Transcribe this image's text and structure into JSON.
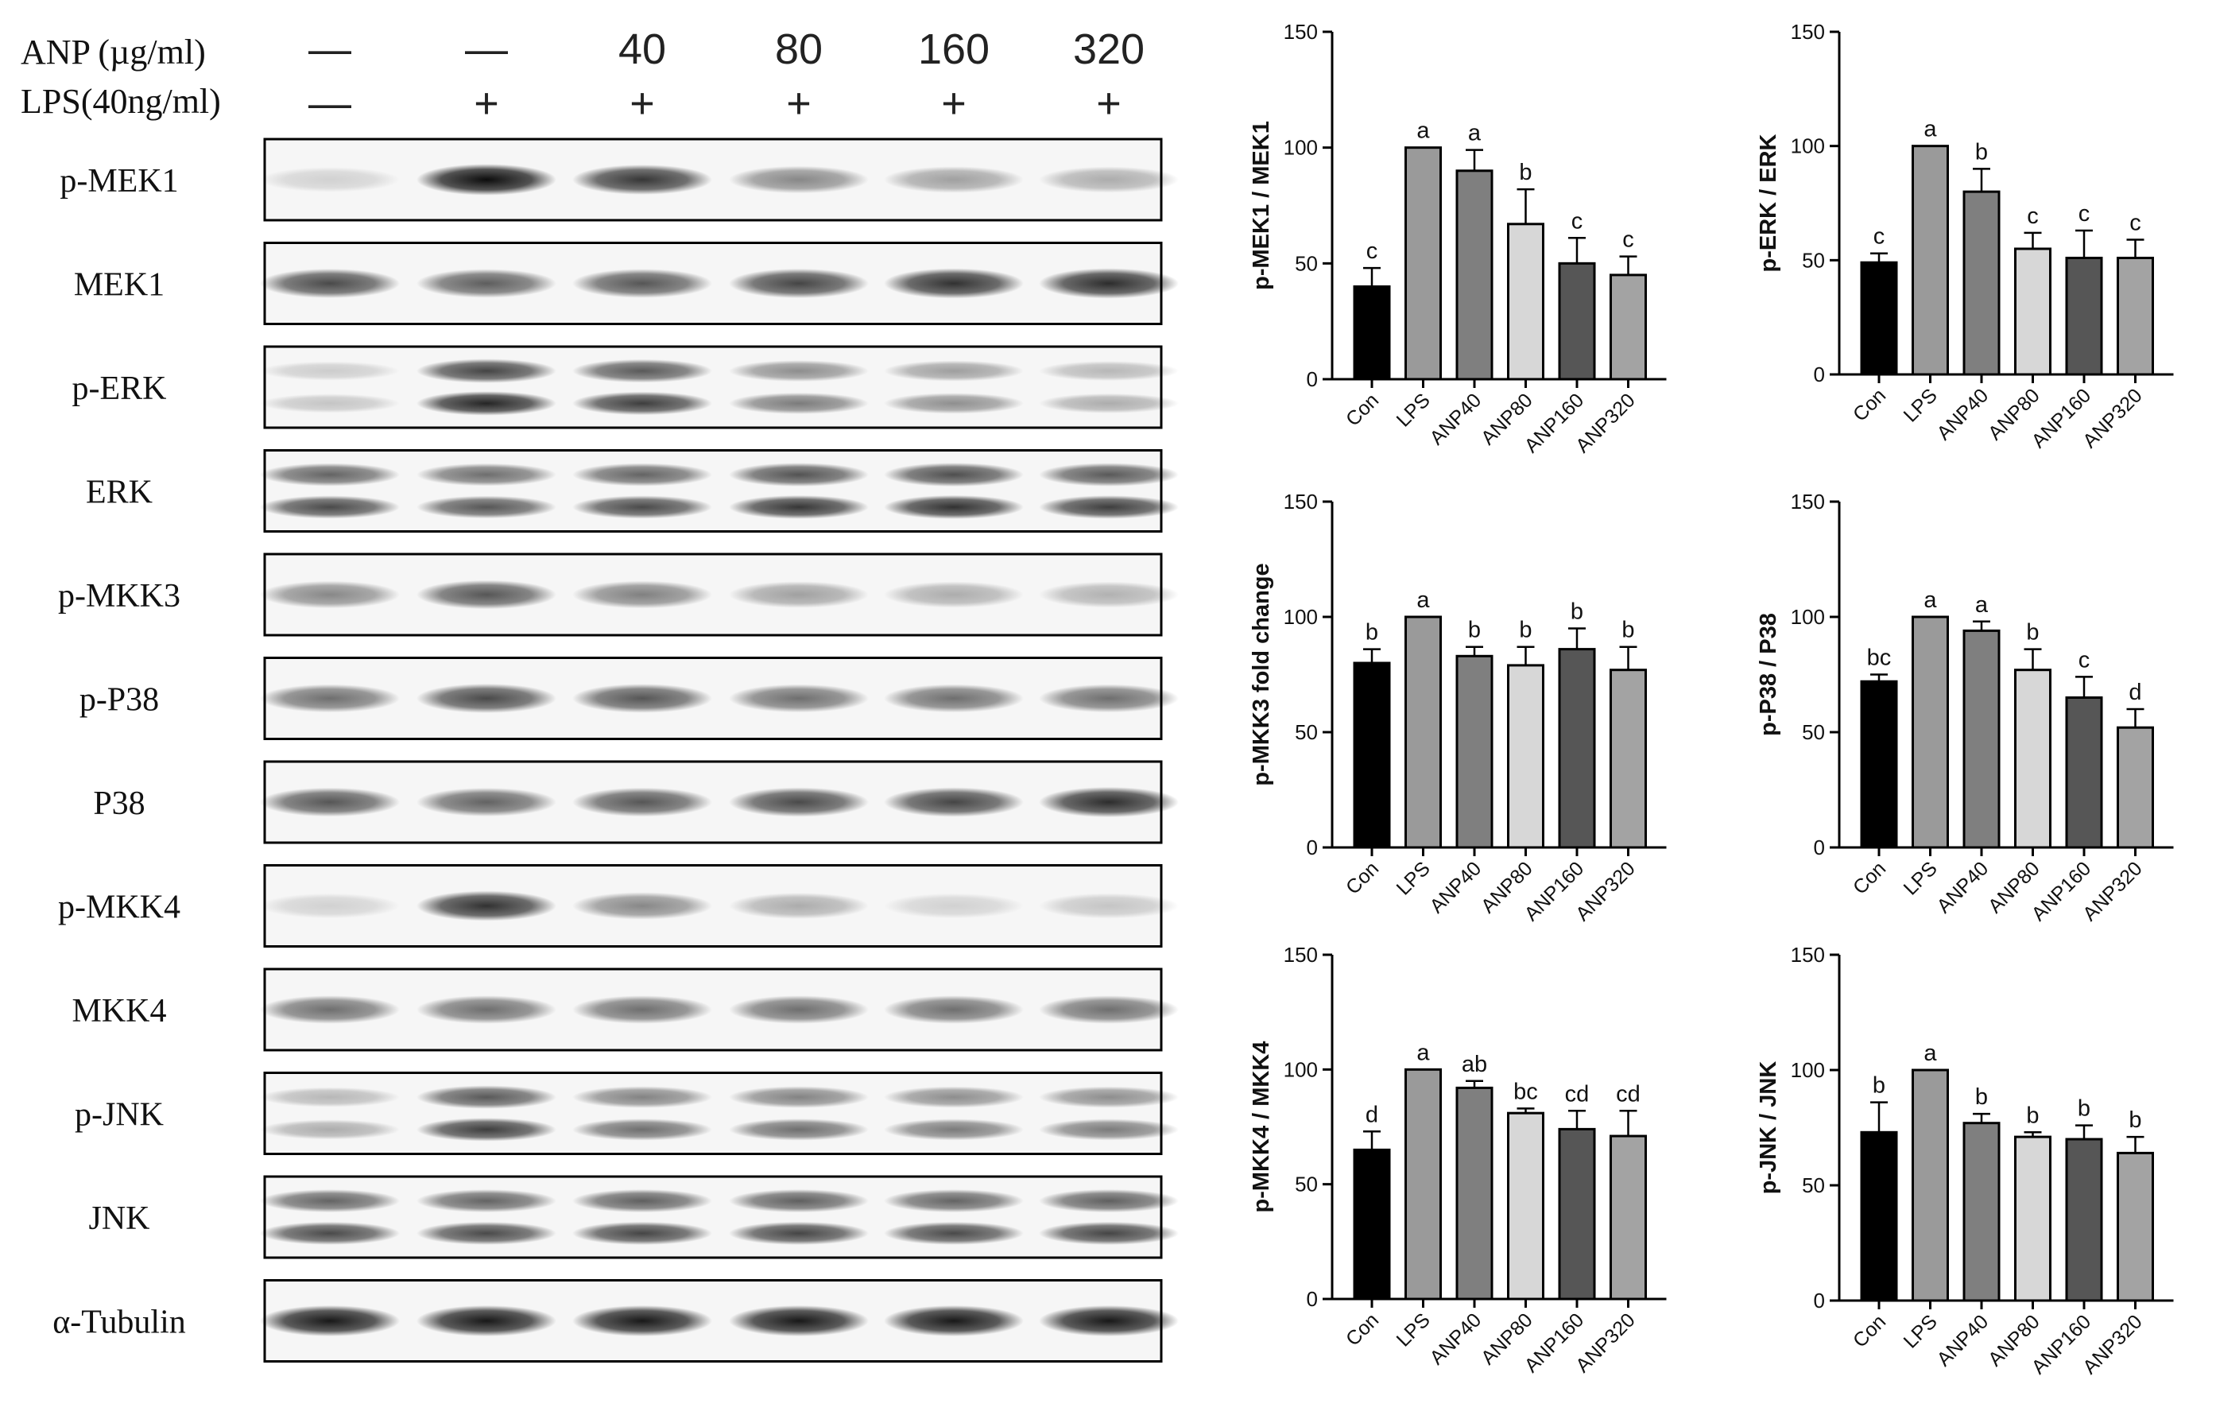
{
  "treatments": {
    "anp_label": "ANP (µg/ml)",
    "lps_label": "LPS(40ng/ml)",
    "anp_values": [
      "—",
      "—",
      "40",
      "80",
      "160",
      "320"
    ],
    "lps_values": [
      "—",
      "+",
      "+",
      "+",
      "+",
      "+"
    ]
  },
  "blots": [
    {
      "label": "p-MEK1",
      "bands": 1,
      "intensity": [
        0.15,
        0.95,
        0.78,
        0.45,
        0.35,
        0.3
      ]
    },
    {
      "label": "MEK1",
      "bands": 1,
      "intensity": [
        0.7,
        0.62,
        0.65,
        0.72,
        0.8,
        0.82
      ]
    },
    {
      "label": "p-ERK",
      "bands": 2,
      "intensity": [
        0.2,
        0.85,
        0.75,
        0.5,
        0.42,
        0.3
      ]
    },
    {
      "label": "ERK",
      "bands": 2,
      "intensity": [
        0.7,
        0.65,
        0.7,
        0.78,
        0.8,
        0.75
      ]
    },
    {
      "label": "p-MKK3",
      "bands": 1,
      "intensity": [
        0.45,
        0.65,
        0.48,
        0.35,
        0.3,
        0.28
      ]
    },
    {
      "label": "p-P38",
      "bands": 1,
      "intensity": [
        0.55,
        0.7,
        0.65,
        0.55,
        0.55,
        0.55
      ]
    },
    {
      "label": "P38",
      "bands": 1,
      "intensity": [
        0.65,
        0.6,
        0.65,
        0.7,
        0.72,
        0.82
      ]
    },
    {
      "label": "p-MKK4",
      "bands": 1,
      "intensity": [
        0.15,
        0.8,
        0.45,
        0.3,
        0.15,
        0.2
      ]
    },
    {
      "label": "MKK4",
      "bands": 1,
      "intensity": [
        0.55,
        0.55,
        0.55,
        0.55,
        0.55,
        0.55
      ]
    },
    {
      "label": "p-JNK",
      "bands": 2,
      "intensity": [
        0.3,
        0.75,
        0.55,
        0.55,
        0.5,
        0.5
      ]
    },
    {
      "label": "JNK",
      "bands": 2,
      "intensity": [
        0.7,
        0.7,
        0.72,
        0.72,
        0.7,
        0.72
      ]
    },
    {
      "label": "α-Tubulin",
      "bands": 1,
      "intensity": [
        0.9,
        0.9,
        0.9,
        0.9,
        0.9,
        0.9
      ]
    }
  ],
  "chart_data": [
    {
      "type": "bar",
      "categories": [
        "Con",
        "LPS",
        "ANP40",
        "ANP80",
        "ANP160",
        "ANP320"
      ],
      "values": [
        40,
        100,
        90,
        67,
        50,
        45
      ],
      "errors": [
        8,
        0,
        9,
        15,
        11,
        8
      ],
      "letters": [
        "c",
        "a",
        "a",
        "b",
        "c",
        "c"
      ],
      "ylabel": "p-MEK1 / MEK1",
      "ylim": [
        0,
        150
      ],
      "yticks": [
        0,
        50,
        100,
        150
      ],
      "bar_colors": [
        "#000000",
        "#9a9a9a",
        "#7f7f7f",
        "#d7d7d7",
        "#565656",
        "#a3a3a3"
      ]
    },
    {
      "type": "bar",
      "categories": [
        "Con",
        "LPS",
        "ANP40",
        "ANP80",
        "ANP160",
        "ANP320"
      ],
      "values": [
        49,
        100,
        80,
        55,
        51,
        51
      ],
      "errors": [
        4,
        0,
        10,
        7,
        12,
        8
      ],
      "letters": [
        "c",
        "a",
        "b",
        "c",
        "c",
        "c"
      ],
      "ylabel": "p-ERK / ERK",
      "ylim": [
        0,
        150
      ],
      "yticks": [
        0,
        50,
        100,
        150
      ],
      "bar_colors": [
        "#000000",
        "#9a9a9a",
        "#7f7f7f",
        "#d7d7d7",
        "#565656",
        "#a3a3a3"
      ]
    },
    {
      "type": "bar",
      "categories": [
        "Con",
        "LPS",
        "ANP40",
        "ANP80",
        "ANP160",
        "ANP320"
      ],
      "values": [
        80,
        100,
        83,
        79,
        86,
        77
      ],
      "errors": [
        6,
        0,
        4,
        8,
        9,
        10
      ],
      "letters": [
        "b",
        "a",
        "b",
        "b",
        "b",
        "b"
      ],
      "ylabel": "p-MKK3 fold change",
      "ylim": [
        0,
        150
      ],
      "yticks": [
        0,
        50,
        100,
        150
      ],
      "bar_colors": [
        "#000000",
        "#9a9a9a",
        "#7f7f7f",
        "#d7d7d7",
        "#565656",
        "#a3a3a3"
      ]
    },
    {
      "type": "bar",
      "categories": [
        "Con",
        "LPS",
        "ANP40",
        "ANP80",
        "ANP160",
        "ANP320"
      ],
      "values": [
        72,
        100,
        94,
        77,
        65,
        52
      ],
      "errors": [
        3,
        0,
        4,
        9,
        9,
        8
      ],
      "letters": [
        "bc",
        "a",
        "a",
        "b",
        "c",
        "d"
      ],
      "ylabel": "p-P38 / P38",
      "ylim": [
        0,
        150
      ],
      "yticks": [
        0,
        50,
        100,
        150
      ],
      "bar_colors": [
        "#000000",
        "#9a9a9a",
        "#7f7f7f",
        "#d7d7d7",
        "#565656",
        "#a3a3a3"
      ]
    },
    {
      "type": "bar",
      "categories": [
        "Con",
        "LPS",
        "ANP40",
        "ANP80",
        "ANP160",
        "ANP320"
      ],
      "values": [
        65,
        100,
        92,
        81,
        74,
        71
      ],
      "errors": [
        8,
        0,
        3,
        2,
        8,
        11
      ],
      "letters": [
        "d",
        "a",
        "ab",
        "bc",
        "cd",
        "cd"
      ],
      "ylabel": "p-MKK4 / MKK4",
      "ylim": [
        0,
        150
      ],
      "yticks": [
        0,
        50,
        100,
        150
      ],
      "bar_colors": [
        "#000000",
        "#9a9a9a",
        "#7f7f7f",
        "#d7d7d7",
        "#565656",
        "#a3a3a3"
      ]
    },
    {
      "type": "bar",
      "categories": [
        "Con",
        "LPS",
        "ANP40",
        "ANP80",
        "ANP160",
        "ANP320"
      ],
      "values": [
        73,
        100,
        77,
        71,
        70,
        64
      ],
      "errors": [
        13,
        0,
        4,
        2,
        6,
        7
      ],
      "letters": [
        "b",
        "a",
        "b",
        "b",
        "b",
        "b"
      ],
      "ylabel": "p-JNK / JNK",
      "ylim": [
        0,
        150
      ],
      "yticks": [
        0,
        50,
        100,
        150
      ],
      "bar_colors": [
        "#000000",
        "#9a9a9a",
        "#7f7f7f",
        "#d7d7d7",
        "#565656",
        "#a3a3a3"
      ]
    }
  ]
}
